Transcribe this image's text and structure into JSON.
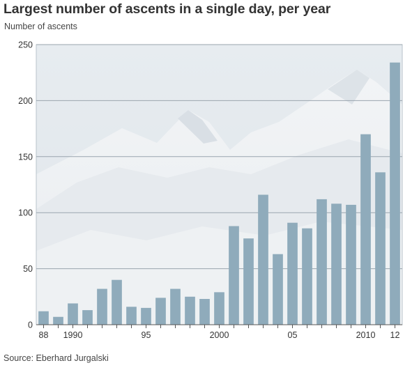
{
  "chart_data": {
    "type": "bar",
    "title": "Largest number of ascents in a single day, per year",
    "ylabel": "Number of ascents",
    "xlabel": "",
    "source": "Source: Eberhard Jurgalski",
    "ylim": [
      0,
      250
    ],
    "yticks": [
      0,
      50,
      100,
      150,
      200,
      250
    ],
    "grid": true,
    "bar_color": "#8fabbb",
    "categories": [
      1988,
      1989,
      1990,
      1991,
      1992,
      1993,
      1994,
      1995,
      1996,
      1997,
      1998,
      1999,
      2000,
      2001,
      2002,
      2003,
      2004,
      2005,
      2006,
      2007,
      2008,
      2009,
      2010,
      2011,
      2012
    ],
    "values": [
      12,
      7,
      19,
      13,
      32,
      40,
      16,
      15,
      24,
      32,
      25,
      23,
      29,
      88,
      77,
      116,
      63,
      91,
      86,
      112,
      108,
      107,
      170,
      136,
      234
    ],
    "xtick_labels": [
      {
        "year": 1988,
        "label": "88"
      },
      {
        "year": 1990,
        "label": "1990"
      },
      {
        "year": 1995,
        "label": "95"
      },
      {
        "year": 2000,
        "label": "2000"
      },
      {
        "year": 2005,
        "label": "05"
      },
      {
        "year": 2010,
        "label": "2010"
      },
      {
        "year": 2012,
        "label": "12"
      }
    ]
  }
}
